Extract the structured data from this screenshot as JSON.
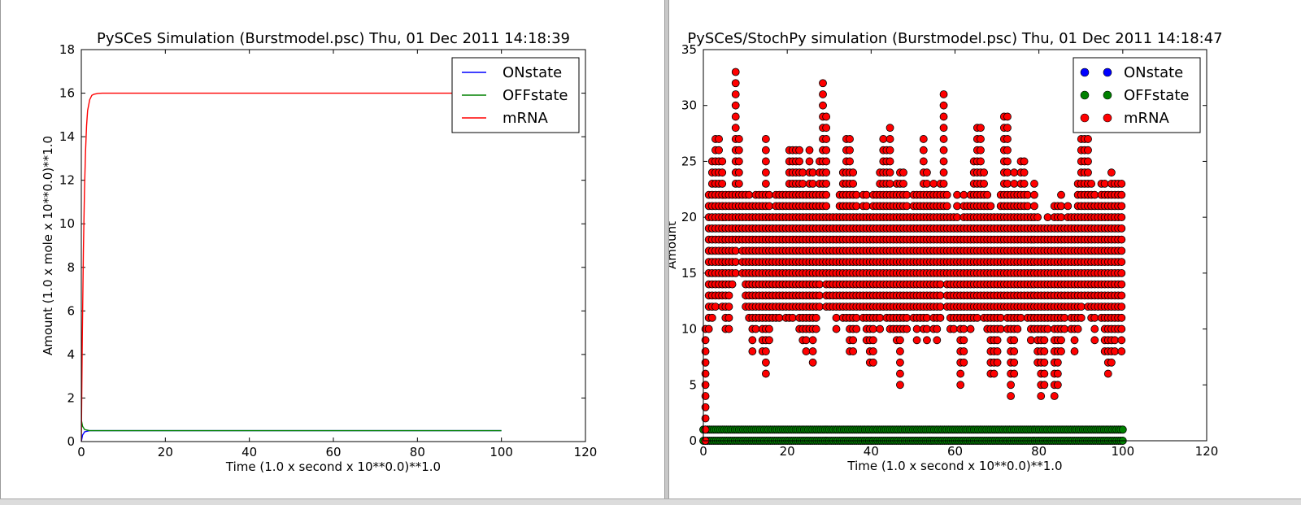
{
  "chart_data": [
    {
      "type": "line",
      "title": "PySCeS Simulation (Burstmodel.psc) Thu, 01 Dec 2011 14:18:39",
      "xlabel": "Time (1.0 x second x 10**0.0)**1.0",
      "ylabel": "Amount (1.0 x mole x 10**0.0)**1.0",
      "xlim": [
        0,
        120
      ],
      "ylim": [
        0,
        18
      ],
      "xticks": [
        0,
        20,
        40,
        60,
        80,
        100,
        120
      ],
      "yticks": [
        0,
        2,
        4,
        6,
        8,
        10,
        12,
        14,
        16,
        18
      ],
      "grid": false,
      "legend_position": "top-right",
      "series": [
        {
          "name": "ONstate",
          "color": "#0000ff",
          "x": [
            0,
            0.3,
            0.8,
            2,
            100
          ],
          "y": [
            0,
            0.3,
            0.45,
            0.5,
            0.5
          ]
        },
        {
          "name": "OFFstate",
          "color": "#008000",
          "x": [
            0,
            0.3,
            0.8,
            2,
            100
          ],
          "y": [
            1,
            0.7,
            0.55,
            0.5,
            0.5
          ]
        },
        {
          "name": "mRNA",
          "color": "#ff0000",
          "x": [
            0,
            0.25,
            0.5,
            0.75,
            1,
            1.25,
            1.5,
            2,
            2.5,
            3,
            4,
            5,
            7,
            100
          ],
          "y": [
            0,
            5.0,
            8.8,
            11.5,
            13.3,
            14.5,
            15.2,
            15.7,
            15.9,
            15.95,
            15.99,
            16,
            16,
            16
          ]
        }
      ]
    },
    {
      "type": "scatter",
      "title": "PySCeS/StochPy simulation (Burstmodel.psc) Thu, 01 Dec 2011 14:18:47",
      "xlabel": "Time (1.0 x second x 10**0.0)**1.0",
      "ylabel": "Amount",
      "xlim": [
        0,
        120
      ],
      "ylim": [
        0,
        35
      ],
      "xticks": [
        0,
        20,
        40,
        60,
        80,
        100,
        120
      ],
      "yticks": [
        0,
        5,
        10,
        15,
        20,
        25,
        30,
        35
      ],
      "grid": false,
      "legend_position": "top-right",
      "x_range": [
        0,
        100
      ],
      "series": [
        {
          "name": "ONstate",
          "color": "#0000ff",
          "values": [
            0,
            1
          ]
        },
        {
          "name": "OFFstate",
          "color": "#008000",
          "values": [
            0,
            1
          ]
        },
        {
          "name": "mRNA",
          "color": "#ff0000",
          "columns": [
            {
              "x": 0.5,
              "min": 0,
              "max": 10
            },
            {
              "x": 1.3,
              "min": 10,
              "max": 22
            },
            {
              "x": 2.1,
              "min": 11,
              "max": 25
            },
            {
              "x": 2.9,
              "min": 12,
              "max": 27
            },
            {
              "x": 3.7,
              "min": 13,
              "max": 27
            },
            {
              "x": 4.5,
              "min": 12,
              "max": 25
            },
            {
              "x": 5.3,
              "min": 10,
              "max": 22
            },
            {
              "x": 6.1,
              "min": 10,
              "max": 22
            },
            {
              "x": 6.9,
              "min": 14,
              "max": 22
            },
            {
              "x": 7.7,
              "min": 15,
              "max": 33
            },
            {
              "x": 8.5,
              "min": 18,
              "max": 27
            },
            {
              "x": 9.3,
              "min": 15,
              "max": 22
            },
            {
              "x": 10.1,
              "min": 12,
              "max": 22
            },
            {
              "x": 10.9,
              "min": 11,
              "max": 22
            },
            {
              "x": 11.7,
              "min": 8,
              "max": 21
            },
            {
              "x": 12.5,
              "min": 10,
              "max": 22
            },
            {
              "x": 13.3,
              "min": 11,
              "max": 22
            },
            {
              "x": 14.1,
              "min": 8,
              "max": 22
            },
            {
              "x": 14.9,
              "min": 6,
              "max": 27
            },
            {
              "x": 15.7,
              "min": 9,
              "max": 22
            },
            {
              "x": 16.5,
              "min": 11,
              "max": 20
            },
            {
              "x": 17.3,
              "min": 11,
              "max": 22
            },
            {
              "x": 18.1,
              "min": 11,
              "max": 22
            },
            {
              "x": 18.9,
              "min": 12,
              "max": 22
            },
            {
              "x": 19.7,
              "min": 11,
              "max": 22
            },
            {
              "x": 20.5,
              "min": 11,
              "max": 26
            },
            {
              "x": 21.3,
              "min": 11,
              "max": 26
            },
            {
              "x": 22.1,
              "min": 12,
              "max": 26
            },
            {
              "x": 22.9,
              "min": 10,
              "max": 26
            },
            {
              "x": 23.7,
              "min": 9,
              "max": 24
            },
            {
              "x": 24.5,
              "min": 8,
              "max": 22
            },
            {
              "x": 25.3,
              "min": 10,
              "max": 26
            },
            {
              "x": 26.1,
              "min": 7,
              "max": 24
            },
            {
              "x": 26.9,
              "min": 10,
              "max": 22
            },
            {
              "x": 27.7,
              "min": 12,
              "max": 25
            },
            {
              "x": 28.5,
              "min": 15,
              "max": 32
            },
            {
              "x": 29.3,
              "min": 12,
              "max": 29
            },
            {
              "x": 30.1,
              "min": 12,
              "max": 20
            },
            {
              "x": 30.9,
              "min": 12,
              "max": 20
            },
            {
              "x": 31.7,
              "min": 10,
              "max": 20
            },
            {
              "x": 32.5,
              "min": 12,
              "max": 22
            },
            {
              "x": 33.3,
              "min": 11,
              "max": 24
            },
            {
              "x": 34.1,
              "min": 11,
              "max": 27
            },
            {
              "x": 34.9,
              "min": 8,
              "max": 27
            },
            {
              "x": 35.7,
              "min": 8,
              "max": 24
            },
            {
              "x": 36.5,
              "min": 10,
              "max": 22
            },
            {
              "x": 37.3,
              "min": 12,
              "max": 20
            },
            {
              "x": 38.1,
              "min": 11,
              "max": 22
            },
            {
              "x": 38.9,
              "min": 9,
              "max": 22
            },
            {
              "x": 39.7,
              "min": 7,
              "max": 20
            },
            {
              "x": 40.5,
              "min": 7,
              "max": 22
            },
            {
              "x": 41.3,
              "min": 11,
              "max": 22
            },
            {
              "x": 42.1,
              "min": 10,
              "max": 24
            },
            {
              "x": 42.9,
              "min": 12,
              "max": 27
            },
            {
              "x": 43.7,
              "min": 11,
              "max": 26
            },
            {
              "x": 44.5,
              "min": 10,
              "max": 28
            },
            {
              "x": 45.3,
              "min": 10,
              "max": 22
            },
            {
              "x": 46.1,
              "min": 9,
              "max": 23
            },
            {
              "x": 46.9,
              "min": 5,
              "max": 24
            },
            {
              "x": 47.7,
              "min": 10,
              "max": 24
            },
            {
              "x": 48.5,
              "min": 10,
              "max": 22
            },
            {
              "x": 49.3,
              "min": 12,
              "max": 20
            },
            {
              "x": 50.1,
              "min": 11,
              "max": 22
            },
            {
              "x": 50.9,
              "min": 9,
              "max": 22
            },
            {
              "x": 51.7,
              "min": 11,
              "max": 22
            },
            {
              "x": 52.5,
              "min": 10,
              "max": 27
            },
            {
              "x": 53.3,
              "min": 9,
              "max": 24
            },
            {
              "x": 54.1,
              "min": 12,
              "max": 22
            },
            {
              "x": 54.9,
              "min": 10,
              "max": 23
            },
            {
              "x": 55.7,
              "min": 9,
              "max": 22
            },
            {
              "x": 56.5,
              "min": 11,
              "max": 23
            },
            {
              "x": 57.3,
              "min": 15,
              "max": 31
            },
            {
              "x": 58.1,
              "min": 12,
              "max": 22
            },
            {
              "x": 58.9,
              "min": 10,
              "max": 20
            },
            {
              "x": 59.7,
              "min": 10,
              "max": 20
            },
            {
              "x": 60.5,
              "min": 11,
              "max": 22
            },
            {
              "x": 61.3,
              "min": 5,
              "max": 19
            },
            {
              "x": 62.1,
              "min": 7,
              "max": 22
            },
            {
              "x": 62.9,
              "min": 11,
              "max": 21
            },
            {
              "x": 63.7,
              "min": 10,
              "max": 22
            },
            {
              "x": 64.5,
              "min": 11,
              "max": 25
            },
            {
              "x": 65.3,
              "min": 11,
              "max": 28
            },
            {
              "x": 66.1,
              "min": 12,
              "max": 28
            },
            {
              "x": 66.9,
              "min": 11,
              "max": 24
            },
            {
              "x": 67.7,
              "min": 10,
              "max": 22
            },
            {
              "x": 68.5,
              "min": 6,
              "max": 21
            },
            {
              "x": 69.3,
              "min": 6,
              "max": 20
            },
            {
              "x": 70.1,
              "min": 7,
              "max": 20
            },
            {
              "x": 70.9,
              "min": 10,
              "max": 22
            },
            {
              "x": 71.7,
              "min": 12,
              "max": 29
            },
            {
              "x": 72.5,
              "min": 10,
              "max": 29
            },
            {
              "x": 73.3,
              "min": 4,
              "max": 22
            },
            {
              "x": 74.1,
              "min": 6,
              "max": 24
            },
            {
              "x": 74.9,
              "min": 10,
              "max": 22
            },
            {
              "x": 75.7,
              "min": 11,
              "max": 25
            },
            {
              "x": 76.5,
              "min": 12,
              "max": 25
            },
            {
              "x": 77.3,
              "min": 11,
              "max": 22
            },
            {
              "x": 78.1,
              "min": 9,
              "max": 20
            },
            {
              "x": 78.9,
              "min": 10,
              "max": 23
            },
            {
              "x": 79.7,
              "min": 7,
              "max": 20
            },
            {
              "x": 80.5,
              "min": 4,
              "max": 19
            },
            {
              "x": 81.3,
              "min": 5,
              "max": 19
            },
            {
              "x": 82.1,
              "min": 10,
              "max": 20
            },
            {
              "x": 82.9,
              "min": 11,
              "max": 19
            },
            {
              "x": 83.7,
              "min": 4,
              "max": 21
            },
            {
              "x": 84.5,
              "min": 5,
              "max": 21
            },
            {
              "x": 85.3,
              "min": 8,
              "max": 22
            },
            {
              "x": 86.1,
              "min": 10,
              "max": 19
            },
            {
              "x": 86.9,
              "min": 12,
              "max": 21
            },
            {
              "x": 87.7,
              "min": 10,
              "max": 20
            },
            {
              "x": 88.5,
              "min": 8,
              "max": 20
            },
            {
              "x": 89.3,
              "min": 10,
              "max": 23
            },
            {
              "x": 90.1,
              "min": 11,
              "max": 27
            },
            {
              "x": 90.9,
              "min": 13,
              "max": 30
            },
            {
              "x": 91.7,
              "min": 12,
              "max": 27
            },
            {
              "x": 92.5,
              "min": 11,
              "max": 23
            },
            {
              "x": 93.3,
              "min": 9,
              "max": 22
            },
            {
              "x": 94.1,
              "min": 12,
              "max": 21
            },
            {
              "x": 94.9,
              "min": 11,
              "max": 23
            },
            {
              "x": 95.7,
              "min": 8,
              "max": 23
            },
            {
              "x": 96.5,
              "min": 6,
              "max": 22
            },
            {
              "x": 97.3,
              "min": 7,
              "max": 24
            },
            {
              "x": 98.1,
              "min": 8,
              "max": 23
            },
            {
              "x": 98.9,
              "min": 10,
              "max": 23
            },
            {
              "x": 99.7,
              "min": 8,
              "max": 23
            }
          ]
        }
      ]
    }
  ]
}
